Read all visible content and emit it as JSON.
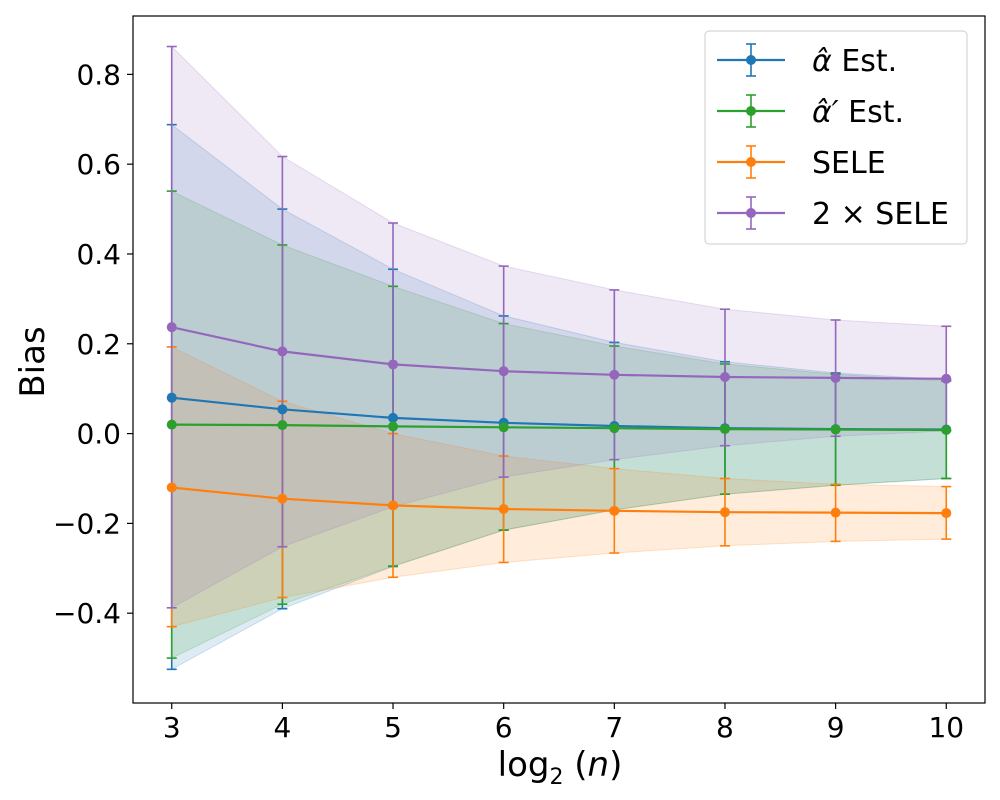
{
  "chart_data": {
    "type": "line",
    "title": "",
    "xlabel": "log₂ (n)",
    "xlabel_parts": {
      "base": "log",
      "sub": "2",
      "rest": " (",
      "var": "n",
      "close": ")"
    },
    "ylabel": "Bias",
    "xlim": [
      2.65,
      10.35
    ],
    "ylim": [
      -0.6,
      0.93
    ],
    "x": [
      3,
      4,
      5,
      6,
      7,
      8,
      9,
      10
    ],
    "x_tick_labels": [
      "3",
      "4",
      "5",
      "6",
      "7",
      "8",
      "9",
      "10"
    ],
    "y_ticks": [
      -0.4,
      -0.2,
      0.0,
      0.2,
      0.4,
      0.6,
      0.8
    ],
    "y_tick_labels": [
      "−0.4",
      "−0.2",
      "0.0",
      "0.2",
      "0.4",
      "0.6",
      "0.8"
    ],
    "grid": false,
    "legend_position": "top-right",
    "series": [
      {
        "name": "α̂ Est.",
        "legend_symbol": "α̂",
        "legend_suffix": "Est.",
        "color": "#1f77b4",
        "values": [
          0.08,
          0.054,
          0.035,
          0.024,
          0.017,
          0.012,
          0.01,
          0.009
        ],
        "err_low": [
          -0.525,
          -0.39,
          -0.296,
          -0.215,
          -0.17,
          -0.135,
          -0.115,
          -0.1
        ],
        "err_high": [
          0.688,
          0.5,
          0.366,
          0.262,
          0.203,
          0.16,
          0.135,
          0.12
        ]
      },
      {
        "name": "α̂′ Est.",
        "legend_symbol": "α̂′",
        "legend_suffix": "Est.",
        "color": "#2ca02c",
        "values": [
          0.02,
          0.019,
          0.016,
          0.014,
          0.012,
          0.01,
          0.009,
          0.008
        ],
        "err_low": [
          -0.5,
          -0.38,
          -0.295,
          -0.215,
          -0.17,
          -0.135,
          -0.115,
          -0.1
        ],
        "err_high": [
          0.54,
          0.42,
          0.328,
          0.245,
          0.195,
          0.155,
          0.132,
          0.117
        ]
      },
      {
        "name": "SELE",
        "legend_symbol": "SELE",
        "legend_suffix": "",
        "color": "#ff7f0e",
        "values": [
          -0.12,
          -0.145,
          -0.16,
          -0.168,
          -0.172,
          -0.175,
          -0.176,
          -0.177
        ],
        "err_low": [
          -0.43,
          -0.365,
          -0.32,
          -0.287,
          -0.266,
          -0.25,
          -0.24,
          -0.235
        ],
        "err_high": [
          0.193,
          0.072,
          0.0,
          -0.05,
          -0.078,
          -0.1,
          -0.113,
          -0.118
        ]
      },
      {
        "name": "2 × SELE",
        "legend_symbol": "2 × SELE",
        "legend_suffix": "",
        "color": "#9467bd",
        "values": [
          0.237,
          0.183,
          0.154,
          0.139,
          0.131,
          0.126,
          0.124,
          0.122
        ],
        "err_low": [
          -0.388,
          -0.252,
          -0.163,
          -0.097,
          -0.058,
          -0.027,
          -0.006,
          0.006
        ],
        "err_high": [
          0.862,
          0.617,
          0.469,
          0.373,
          0.32,
          0.277,
          0.253,
          0.239
        ]
      }
    ]
  }
}
